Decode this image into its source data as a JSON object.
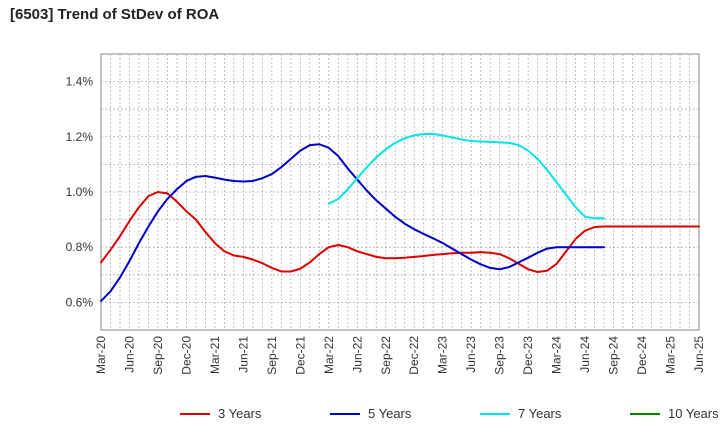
{
  "chart_data": {
    "type": "line",
    "title": "[6503]  Trend of StDev of ROA",
    "xlabel": "",
    "ylabel": "",
    "x_ticks": [
      "Mar-20",
      "Jun-20",
      "Sep-20",
      "Dec-20",
      "Mar-21",
      "Jun-21",
      "Sep-21",
      "Dec-21",
      "Mar-22",
      "Jun-22",
      "Sep-22",
      "Dec-22",
      "Mar-23",
      "Jun-23",
      "Sep-23",
      "Dec-23",
      "Mar-24",
      "Jun-24",
      "Sep-24",
      "Dec-24",
      "Mar-25",
      "Jun-25"
    ],
    "y_ticks": [
      "0.6%",
      "0.8%",
      "1.0%",
      "1.2%",
      "1.4%"
    ],
    "y_tick_values": [
      0.6,
      0.8,
      1.0,
      1.2,
      1.4
    ],
    "ylim": [
      0.5,
      1.5
    ],
    "grid": true,
    "legend_position": "bottom",
    "series": [
      {
        "name": "3 Years",
        "color": "#dd0000",
        "x": [
          0,
          1,
          2,
          3,
          4,
          5,
          6,
          7,
          8,
          9,
          10,
          11,
          12,
          13,
          14,
          15,
          16,
          17,
          18,
          19,
          20,
          21,
          22,
          23,
          24,
          25,
          26,
          27,
          28,
          29,
          30,
          31,
          32,
          33,
          34,
          35,
          36,
          37,
          38,
          39,
          40,
          41,
          42,
          43,
          44,
          45,
          46,
          47,
          48,
          49,
          50,
          51,
          52,
          53,
          54,
          55,
          56,
          57,
          58,
          59,
          60,
          61,
          62,
          63
        ],
        "values": [
          0.745,
          0.79,
          0.84,
          0.895,
          0.945,
          0.985,
          1.0,
          0.995,
          0.965,
          0.93,
          0.9,
          0.855,
          0.815,
          0.785,
          0.77,
          0.765,
          0.755,
          0.742,
          0.725,
          0.712,
          0.712,
          0.722,
          0.745,
          0.775,
          0.8,
          0.808,
          0.8,
          0.785,
          0.775,
          0.765,
          0.76,
          0.76,
          0.762,
          0.765,
          0.768,
          0.772,
          0.775,
          0.778,
          0.78,
          0.78,
          0.782,
          0.78,
          0.775,
          0.76,
          0.74,
          0.72,
          0.71,
          0.715,
          0.74,
          0.785,
          0.83,
          0.86,
          0.873,
          0.875,
          0.875,
          0.875,
          0.875,
          0.875,
          0.875,
          0.875,
          0.875,
          0.875,
          0.875,
          0.875
        ]
      },
      {
        "name": "5 Years",
        "color": "#0000cc",
        "x": [
          0,
          1,
          2,
          3,
          4,
          5,
          6,
          7,
          8,
          9,
          10,
          11,
          12,
          13,
          14,
          15,
          16,
          17,
          18,
          19,
          20,
          21,
          22,
          23,
          24,
          25,
          26,
          27,
          28,
          29,
          30,
          31,
          32,
          33,
          34,
          35,
          36,
          37,
          38,
          39,
          40,
          41,
          42,
          43,
          44,
          45,
          46,
          47,
          48,
          49,
          50,
          51,
          52,
          53
        ],
        "values": [
          0.605,
          0.64,
          0.69,
          0.75,
          0.815,
          0.875,
          0.93,
          0.975,
          1.01,
          1.04,
          1.055,
          1.058,
          1.052,
          1.045,
          1.04,
          1.038,
          1.04,
          1.05,
          1.065,
          1.09,
          1.12,
          1.15,
          1.17,
          1.173,
          1.16,
          1.13,
          1.085,
          1.045,
          1.005,
          0.97,
          0.94,
          0.91,
          0.885,
          0.865,
          0.848,
          0.832,
          0.815,
          0.795,
          0.775,
          0.755,
          0.738,
          0.725,
          0.72,
          0.728,
          0.745,
          0.762,
          0.78,
          0.795,
          0.8,
          0.8,
          0.8,
          0.8,
          0.8,
          0.8
        ]
      },
      {
        "name": "7 Years",
        "color": "#00e5e5",
        "x": [
          24,
          25,
          26,
          27,
          28,
          29,
          30,
          31,
          32,
          33,
          34,
          35,
          36,
          37,
          38,
          39,
          40,
          41,
          42,
          43,
          44,
          45,
          46,
          47,
          48,
          49,
          50,
          51,
          52,
          53
        ],
        "values": [
          0.958,
          0.975,
          1.01,
          1.05,
          1.09,
          1.125,
          1.155,
          1.178,
          1.195,
          1.205,
          1.21,
          1.21,
          1.205,
          1.198,
          1.19,
          1.185,
          1.183,
          1.182,
          1.18,
          1.178,
          1.17,
          1.15,
          1.12,
          1.08,
          1.035,
          0.99,
          0.945,
          0.91,
          0.905,
          0.905
        ]
      },
      {
        "name": "10 Years",
        "color": "#008800",
        "x": [],
        "values": []
      }
    ]
  }
}
